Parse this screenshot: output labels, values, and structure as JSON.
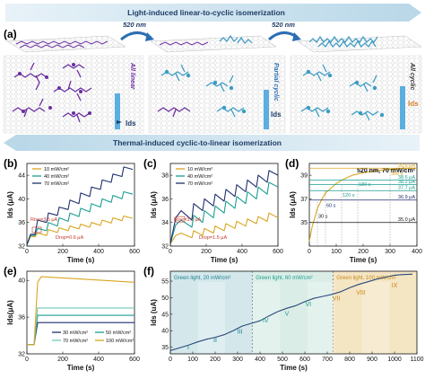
{
  "panel_a": {
    "letter": "(a)",
    "banner_top": "Light-induced linear-to-cyclic isomerization",
    "banner_bottom": "Thermal-induced cyclic-to-linear isomerization",
    "wavelength": "520 nm",
    "state1": "All linear",
    "state2": "Partial cyclic",
    "state3": "All cyclic",
    "ids_label": "Ids",
    "colors": {
      "linear": "#6a2ea0",
      "cyclic": "#3a9bc4",
      "mixed": "#7fb8d4",
      "banner": "#a8cde0",
      "ids_bar": "#5aaee0"
    }
  },
  "chart_data": [
    {
      "panel": "(b)",
      "type": "line",
      "xlabel": "Time (s)",
      "ylabel": "Ids (μA)",
      "xlim": [
        0,
        600
      ],
      "ylim": [
        32,
        46
      ],
      "xticks": [
        0,
        200,
        400,
        600
      ],
      "yticks": [
        32,
        36,
        40,
        44
      ],
      "series": [
        {
          "name": "10 mW/cm²",
          "color": "#d9a520",
          "x": [
            0,
            20,
            45,
            60,
            110,
            120,
            170,
            180,
            230,
            240,
            290,
            300,
            350,
            360,
            410,
            420,
            470,
            480,
            530,
            540,
            590
          ],
          "y": [
            32.2,
            33.6,
            33.6,
            34.2,
            33.8,
            34.8,
            34.3,
            35.1,
            34.6,
            35.4,
            34.9,
            35.7,
            35.2,
            36.0,
            35.5,
            36.4,
            35.9,
            36.8,
            36.3,
            37.1,
            36.7
          ]
        },
        {
          "name": "40 mW/cm²",
          "color": "#1a9e90",
          "x": [
            0,
            20,
            45,
            60,
            110,
            120,
            170,
            180,
            230,
            240,
            290,
            300,
            350,
            360,
            410,
            420,
            470,
            480,
            530,
            540,
            590
          ],
          "y": [
            32.2,
            33.8,
            33.8,
            35.0,
            34.6,
            36.0,
            35.4,
            36.8,
            36.2,
            37.6,
            37.0,
            38.4,
            37.8,
            39.2,
            38.6,
            40.0,
            39.4,
            40.6,
            40.0,
            41.2,
            40.8
          ]
        },
        {
          "name": "70 mW/cm²",
          "color": "#1f2f6e",
          "x": [
            0,
            20,
            45,
            60,
            110,
            120,
            170,
            180,
            230,
            240,
            290,
            300,
            350,
            360,
            410,
            420,
            470,
            480,
            530,
            540,
            590
          ],
          "y": [
            32.2,
            34.0,
            34.0,
            36.4,
            36.0,
            37.6,
            37.2,
            38.6,
            38.2,
            39.8,
            39.2,
            41.0,
            40.4,
            42.0,
            41.6,
            43.2,
            42.8,
            44.2,
            43.8,
            45.4,
            45.0
          ]
        }
      ],
      "annotations": [
        "Rise=3.5 μA",
        "Drop=0.6 μA"
      ]
    },
    {
      "panel": "(c)",
      "type": "line",
      "xlabel": "Time (s)",
      "ylabel": "Ids (μA)",
      "xlim": [
        0,
        600
      ],
      "ylim": [
        32,
        39
      ],
      "xticks": [
        0,
        200,
        400,
        600
      ],
      "yticks": [
        32,
        34,
        36,
        38
      ],
      "series": [
        {
          "name": "10 mW/cm²",
          "color": "#d9a520",
          "x": [
            0,
            30,
            60,
            120,
            130,
            180,
            190,
            240,
            250,
            300,
            310,
            360,
            370,
            420,
            430,
            480,
            490,
            540,
            550,
            600
          ],
          "y": [
            32.2,
            32.9,
            33.1,
            32.7,
            33.3,
            32.9,
            33.5,
            33.1,
            33.7,
            33.3,
            33.9,
            33.5,
            34.1,
            33.7,
            34.3,
            33.9,
            34.5,
            34.1,
            34.8,
            34.4
          ]
        },
        {
          "name": "40 mW/cm²",
          "color": "#1a9e90",
          "x": [
            0,
            30,
            60,
            120,
            130,
            180,
            190,
            240,
            250,
            300,
            310,
            360,
            370,
            420,
            430,
            480,
            490,
            540,
            550,
            600
          ],
          "y": [
            32.2,
            33.8,
            34.2,
            33.6,
            34.6,
            34.0,
            35.0,
            34.4,
            35.4,
            34.8,
            35.8,
            35.2,
            36.2,
            35.6,
            36.6,
            36.0,
            37.0,
            36.4,
            37.4,
            37.0
          ]
        },
        {
          "name": "70 mW/cm²",
          "color": "#1f2f6e",
          "x": [
            0,
            30,
            60,
            120,
            130,
            180,
            190,
            240,
            250,
            300,
            310,
            360,
            370,
            420,
            430,
            480,
            490,
            540,
            550,
            600
          ],
          "y": [
            32.2,
            34.4,
            35.0,
            34.2,
            35.6,
            35.0,
            36.0,
            35.4,
            36.4,
            35.8,
            36.8,
            36.2,
            37.2,
            36.6,
            37.6,
            37.0,
            38.0,
            37.4,
            38.4,
            38.0
          ]
        }
      ],
      "annotations": [
        "Rise=3.7 μA",
        "Drop=1.5 μA"
      ]
    },
    {
      "panel": "(d)",
      "type": "line",
      "title": "520 nm, 70 mW/cm²",
      "xlabel": "Time (s)",
      "ylabel": "Ids (μA)",
      "xlim": [
        0,
        400
      ],
      "ylim": [
        33,
        40
      ],
      "xticks": [
        0,
        100,
        200,
        300,
        400
      ],
      "yticks": [
        35,
        37,
        39
      ],
      "series": [
        {
          "name": "",
          "color": "#d9a520",
          "x": [
            0,
            10,
            20,
            30,
            45,
            60,
            80,
            100,
            130,
            160,
            200,
            250,
            300,
            350,
            400
          ],
          "y": [
            33.4,
            34.6,
            35.4,
            36.2,
            36.9,
            37.5,
            37.9,
            38.3,
            38.7,
            39.0,
            39.2,
            39.4,
            39.5,
            39.6,
            39.6
          ]
        }
      ],
      "levels": [
        "39.6 μA",
        "38.6 μA",
        "38.2 μA",
        "37.7 μA",
        "36.9 μA",
        "35.0 μA"
      ],
      "times": [
        "30 s",
        "60 s",
        "120 s",
        "180 s",
        "300 s"
      ]
    },
    {
      "panel": "(e)",
      "type": "line",
      "xlabel": "Time (s)",
      "ylabel": "Ids(μA)",
      "xlim": [
        0,
        600
      ],
      "ylim": [
        32,
        41
      ],
      "xticks": [
        0,
        200,
        400,
        600
      ],
      "yticks": [
        32,
        36,
        40
      ],
      "series": [
        {
          "name": "30 mW/cm²",
          "color": "#1f2f6e",
          "x": [
            0,
            40,
            60,
            600
          ],
          "y": [
            33.0,
            33.0,
            35.4,
            35.4
          ]
        },
        {
          "name": "50 mW/cm²",
          "color": "#1a9e90",
          "x": [
            0,
            40,
            60,
            600
          ],
          "y": [
            33.0,
            33.0,
            36.2,
            36.2
          ]
        },
        {
          "name": "70 mW/cm²",
          "color": "#6fc7b8",
          "x": [
            0,
            40,
            60,
            600
          ],
          "y": [
            33.0,
            33.0,
            37.0,
            37.0
          ]
        },
        {
          "name": "100 mW/cm²",
          "color": "#d9a520",
          "x": [
            0,
            40,
            60,
            80,
            600
          ],
          "y": [
            33.0,
            33.0,
            39.8,
            40.4,
            39.8
          ]
        }
      ]
    },
    {
      "panel": "(f)",
      "type": "line",
      "xlabel": "Time (s)",
      "ylabel": "Ids (uA)",
      "xlim": [
        0,
        1100
      ],
      "ylim": [
        33,
        58
      ],
      "xticks": [
        0,
        100,
        200,
        300,
        400,
        500,
        600,
        700,
        800,
        900,
        1000,
        1100
      ],
      "yticks": [
        35,
        40,
        45,
        50,
        55
      ],
      "bands": [
        {
          "label": "Green light, 20 mW/cm²",
          "from": 0,
          "to": 365
        },
        {
          "label": "Green light, 60 mW/cm²",
          "from": 365,
          "to": 725
        },
        {
          "label": "Green light, 100 mW/cm²",
          "from": 725,
          "to": 1100
        }
      ],
      "stages": [
        "I",
        "II",
        "III",
        "IV",
        "V",
        "VI",
        "VII",
        "VIII",
        "IX"
      ],
      "series": [
        {
          "name": "",
          "color": "#2b4a7a",
          "x": [
            0,
            40,
            80,
            120,
            160,
            200,
            240,
            280,
            320,
            360,
            400,
            440,
            480,
            520,
            560,
            600,
            640,
            680,
            720,
            760,
            800,
            840,
            880,
            920,
            960,
            1000,
            1040,
            1080
          ],
          "y": [
            34.0,
            34.8,
            35.6,
            36.6,
            37.4,
            38.0,
            38.8,
            40.0,
            41.4,
            42.2,
            43.0,
            44.5,
            45.8,
            46.8,
            47.6,
            48.8,
            49.8,
            50.4,
            51.0,
            51.8,
            53.0,
            54.0,
            54.8,
            55.6,
            56.2,
            56.8,
            57.0,
            57.1
          ]
        }
      ]
    }
  ]
}
